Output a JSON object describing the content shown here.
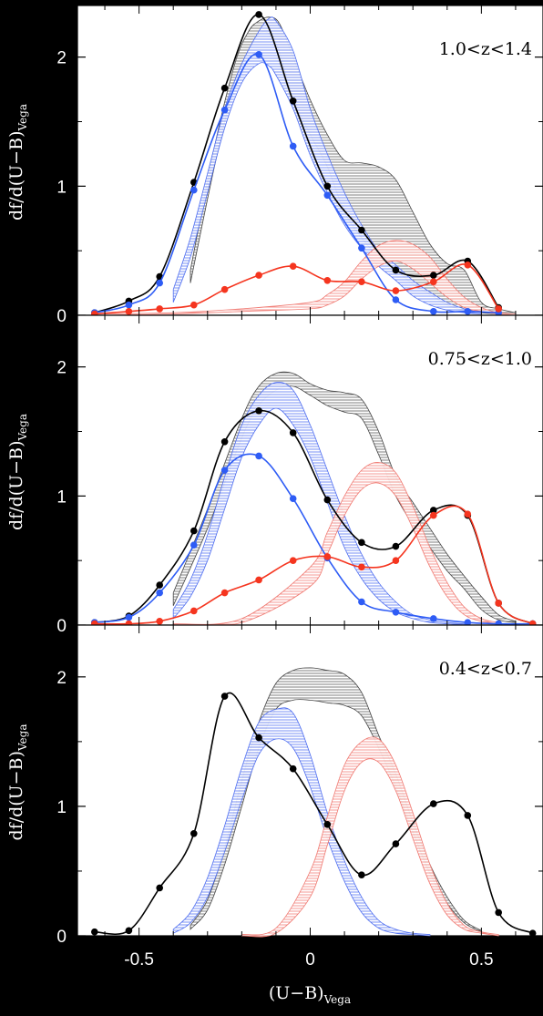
{
  "figure": {
    "xlabel_main": "(U−B)",
    "xlabel_sub": "Vega",
    "ylabel_main": "df/d(U−B)",
    "ylabel_sub": "Vega",
    "colors": {
      "background": "#000000",
      "panel": "#ffffff",
      "black_series": "#000000",
      "blue_series": "#2e5cf5",
      "red_series": "#f5351f",
      "blue_hatch": "#4f6ef0",
      "red_hatch": "#f07a72",
      "black_hatch": "#555555"
    }
  },
  "chart_data": [
    {
      "type": "line",
      "title": "1.0<z<1.4",
      "xlim": [
        -0.68,
        0.68
      ],
      "ylim": [
        0,
        2.4
      ],
      "xticks": [
        "-0.5",
        "0",
        "0.5"
      ],
      "yticks": [
        "0",
        "1",
        "2"
      ],
      "series": [
        {
          "color": "black",
          "x": [
            -0.63,
            -0.53,
            -0.44,
            -0.34,
            -0.25,
            -0.15,
            -0.05,
            0.05,
            0.15,
            0.25,
            0.36,
            0.46,
            0.55
          ],
          "values": [
            0.02,
            0.11,
            0.3,
            1.03,
            1.76,
            2.33,
            1.66,
            1.0,
            0.66,
            0.35,
            0.31,
            0.42,
            0.06
          ]
        },
        {
          "color": "blue",
          "x": [
            -0.63,
            -0.53,
            -0.44,
            -0.34,
            -0.25,
            -0.15,
            -0.05,
            0.05,
            0.15,
            0.25,
            0.36,
            0.46,
            0.55
          ],
          "values": [
            0.02,
            0.08,
            0.25,
            0.97,
            1.59,
            2.02,
            1.31,
            0.93,
            0.52,
            0.12,
            0.03,
            0.03,
            0.02
          ]
        },
        {
          "color": "red",
          "x": [
            -0.63,
            -0.53,
            -0.44,
            -0.34,
            -0.25,
            -0.15,
            -0.05,
            0.05,
            0.15,
            0.25,
            0.36,
            0.46,
            0.55
          ],
          "values": [
            0.01,
            0.03,
            0.05,
            0.08,
            0.2,
            0.31,
            0.38,
            0.27,
            0.26,
            0.19,
            0.26,
            0.39,
            0.05
          ]
        }
      ],
      "bands": [
        {
          "color": "black",
          "x": [
            -0.35,
            -0.28,
            -0.22,
            -0.18,
            -0.15,
            -0.12,
            -0.09,
            -0.05,
            0,
            0.05,
            0.1,
            0.15,
            0.2,
            0.25,
            0.3,
            0.35,
            0.4,
            0.45,
            0.5,
            0.55,
            0.6
          ],
          "lower": [
            0.25,
            1.15,
            1.8,
            2.05,
            2.18,
            2.18,
            2.04,
            1.68,
            1.4,
            1.15,
            0.8,
            0.6,
            0.45,
            0.35,
            0.24,
            0.16,
            0.08,
            0.04,
            0.02,
            0.01,
            0.0
          ],
          "upper": [
            0.35,
            1.3,
            1.95,
            2.2,
            2.28,
            2.31,
            2.26,
            2.0,
            1.67,
            1.4,
            1.2,
            1.18,
            1.15,
            1.05,
            0.8,
            0.55,
            0.4,
            0.35,
            0.1,
            0.05,
            0.02
          ]
        },
        {
          "color": "blue",
          "x": [
            -0.4,
            -0.35,
            -0.3,
            -0.25,
            -0.2,
            -0.15,
            -0.12,
            -0.1,
            -0.05,
            0,
            0.05,
            0.1,
            0.15,
            0.2,
            0.25,
            0.3,
            0.35,
            0.4,
            0.45,
            0.5
          ],
          "lower": [
            0.1,
            0.45,
            0.95,
            1.45,
            1.8,
            1.95,
            1.93,
            1.86,
            1.6,
            1.24,
            0.95,
            0.7,
            0.52,
            0.38,
            0.27,
            0.15,
            0.08,
            0.04,
            0.02,
            0.01
          ],
          "upper": [
            0.2,
            0.6,
            1.1,
            1.6,
            1.95,
            2.2,
            2.3,
            2.28,
            2.05,
            1.6,
            1.25,
            0.95,
            0.7,
            0.5,
            0.39,
            0.27,
            0.18,
            0.1,
            0.05,
            0.02
          ]
        },
        {
          "color": "red",
          "x": [
            -0.6,
            -0.4,
            -0.2,
            0,
            0.05,
            0.1,
            0.15,
            0.2,
            0.25,
            0.3,
            0.35,
            0.4,
            0.45,
            0.5,
            0.55,
            0.6
          ],
          "lower": [
            0.0,
            0.01,
            0.03,
            0.05,
            0.08,
            0.15,
            0.28,
            0.38,
            0.42,
            0.36,
            0.25,
            0.14,
            0.06,
            0.03,
            0.01,
            0.0
          ],
          "upper": [
            0.01,
            0.02,
            0.05,
            0.1,
            0.16,
            0.26,
            0.42,
            0.54,
            0.58,
            0.55,
            0.45,
            0.28,
            0.14,
            0.06,
            0.02,
            0.01
          ]
        }
      ]
    },
    {
      "type": "line",
      "title": "0.75<z<1.0",
      "xlim": [
        -0.68,
        0.68
      ],
      "ylim": [
        0,
        2.4
      ],
      "xticks": [
        "-0.5",
        "0",
        "0.5"
      ],
      "yticks": [
        "0",
        "1",
        "2"
      ],
      "series": [
        {
          "color": "black",
          "x": [
            -0.63,
            -0.53,
            -0.44,
            -0.34,
            -0.25,
            -0.15,
            -0.05,
            0.05,
            0.15,
            0.25,
            0.36,
            0.46,
            0.55,
            0.65
          ],
          "values": [
            0.02,
            0.07,
            0.31,
            0.73,
            1.42,
            1.66,
            1.49,
            0.97,
            0.64,
            0.61,
            0.89,
            0.85,
            0.17,
            0.01
          ]
        },
        {
          "color": "blue",
          "x": [
            -0.63,
            -0.53,
            -0.44,
            -0.34,
            -0.25,
            -0.15,
            -0.05,
            0.05,
            0.15,
            0.25,
            0.36,
            0.46,
            0.55,
            0.65
          ],
          "values": [
            0.02,
            0.06,
            0.25,
            0.62,
            1.2,
            1.31,
            0.98,
            0.52,
            0.18,
            0.1,
            0.05,
            0.02,
            0.01,
            0.01
          ]
        },
        {
          "color": "red",
          "x": [
            -0.63,
            -0.53,
            -0.44,
            -0.34,
            -0.25,
            -0.15,
            -0.05,
            0.05,
            0.15,
            0.25,
            0.36,
            0.46,
            0.55,
            0.65
          ],
          "values": [
            0.01,
            0.01,
            0.03,
            0.11,
            0.25,
            0.35,
            0.5,
            0.53,
            0.45,
            0.5,
            0.85,
            0.86,
            0.17,
            0.01
          ]
        }
      ],
      "bands": [
        {
          "color": "black",
          "x": [
            -0.4,
            -0.3,
            -0.2,
            -0.15,
            -0.1,
            -0.05,
            0,
            0.05,
            0.1,
            0.15,
            0.2,
            0.25,
            0.3,
            0.35,
            0.4,
            0.45,
            0.5,
            0.55,
            0.6
          ],
          "lower": [
            0.15,
            0.75,
            1.45,
            1.7,
            1.82,
            1.85,
            1.78,
            1.7,
            1.65,
            1.6,
            1.32,
            1.0,
            0.78,
            0.6,
            0.42,
            0.28,
            0.12,
            0.04,
            0.02
          ],
          "upper": [
            0.25,
            0.9,
            1.6,
            1.85,
            1.95,
            1.95,
            1.87,
            1.82,
            1.8,
            1.75,
            1.5,
            1.15,
            0.95,
            0.75,
            0.55,
            0.38,
            0.22,
            0.08,
            0.03
          ]
        },
        {
          "color": "blue",
          "x": [
            -0.4,
            -0.35,
            -0.3,
            -0.25,
            -0.2,
            -0.15,
            -0.1,
            -0.05,
            0,
            0.05,
            0.1,
            0.15,
            0.2,
            0.25,
            0.3,
            0.35,
            0.4,
            0.45
          ],
          "lower": [
            0.05,
            0.22,
            0.5,
            0.9,
            1.3,
            1.55,
            1.68,
            1.55,
            1.3,
            0.95,
            0.6,
            0.36,
            0.2,
            0.1,
            0.05,
            0.02,
            0.01,
            0.0
          ],
          "upper": [
            0.12,
            0.35,
            0.7,
            1.15,
            1.55,
            1.78,
            1.88,
            1.82,
            1.55,
            1.2,
            0.85,
            0.55,
            0.33,
            0.18,
            0.08,
            0.04,
            0.02,
            0.01
          ]
        },
        {
          "color": "red",
          "x": [
            -0.4,
            -0.2,
            0,
            0.05,
            0.1,
            0.15,
            0.2,
            0.25,
            0.3,
            0.35,
            0.4,
            0.45,
            0.5,
            0.55
          ],
          "lower": [
            0.0,
            0.02,
            0.3,
            0.55,
            0.85,
            1.05,
            1.1,
            1.0,
            0.75,
            0.45,
            0.22,
            0.08,
            0.03,
            0.01
          ],
          "upper": [
            0.01,
            0.05,
            0.45,
            0.72,
            1.0,
            1.2,
            1.26,
            1.18,
            0.92,
            0.6,
            0.33,
            0.14,
            0.05,
            0.02
          ]
        }
      ]
    },
    {
      "type": "line",
      "title": "0.4<z<0.7",
      "xlim": [
        -0.68,
        0.68
      ],
      "ylim": [
        0,
        2.4
      ],
      "xticks": [
        "-0.5",
        "0",
        "0.5"
      ],
      "yticks": [
        "0",
        "1",
        "2"
      ],
      "series": [
        {
          "color": "black",
          "x": [
            -0.63,
            -0.53,
            -0.44,
            -0.34,
            -0.25,
            -0.15,
            -0.05,
            0.05,
            0.15,
            0.25,
            0.36,
            0.46,
            0.55,
            0.65
          ],
          "values": [
            0.03,
            0.04,
            0.37,
            0.79,
            1.85,
            1.53,
            1.29,
            0.86,
            0.47,
            0.71,
            1.02,
            0.93,
            0.18,
            0.02
          ]
        }
      ],
      "bands": [
        {
          "color": "black",
          "x": [
            -0.35,
            -0.3,
            -0.25,
            -0.2,
            -0.15,
            -0.1,
            -0.05,
            0,
            0.05,
            0.1,
            0.15,
            0.2,
            0.25,
            0.3,
            0.35,
            0.4,
            0.45,
            0.5
          ],
          "lower": [
            0.05,
            0.2,
            0.55,
            1.0,
            1.45,
            1.75,
            1.82,
            1.82,
            1.8,
            1.78,
            1.7,
            1.45,
            1.15,
            0.8,
            0.48,
            0.25,
            0.1,
            0.03
          ],
          "upper": [
            0.08,
            0.28,
            0.68,
            1.2,
            1.65,
            1.95,
            2.05,
            2.07,
            2.05,
            2.02,
            1.88,
            1.55,
            1.25,
            0.88,
            0.55,
            0.3,
            0.12,
            0.04
          ]
        },
        {
          "color": "blue",
          "x": [
            -0.4,
            -0.35,
            -0.3,
            -0.25,
            -0.2,
            -0.15,
            -0.1,
            -0.05,
            0,
            0.05,
            0.1,
            0.15,
            0.2,
            0.25,
            0.3,
            0.35
          ],
          "lower": [
            0.02,
            0.1,
            0.3,
            0.65,
            1.05,
            1.4,
            1.52,
            1.45,
            1.15,
            0.75,
            0.42,
            0.18,
            0.06,
            0.02,
            0.01,
            0.0
          ],
          "upper": [
            0.05,
            0.18,
            0.45,
            0.85,
            1.3,
            1.65,
            1.75,
            1.72,
            1.4,
            0.95,
            0.58,
            0.3,
            0.12,
            0.05,
            0.02,
            0.01
          ]
        },
        {
          "color": "red",
          "x": [
            -0.2,
            -0.1,
            0,
            0.05,
            0.1,
            0.15,
            0.2,
            0.25,
            0.3,
            0.35,
            0.4,
            0.45,
            0.5,
            0.55
          ],
          "lower": [
            0.0,
            0.02,
            0.3,
            0.7,
            1.12,
            1.34,
            1.34,
            1.12,
            0.75,
            0.4,
            0.16,
            0.05,
            0.02,
            0.0
          ],
          "upper": [
            0.01,
            0.06,
            0.5,
            0.92,
            1.32,
            1.5,
            1.52,
            1.32,
            0.95,
            0.55,
            0.25,
            0.08,
            0.03,
            0.01
          ]
        }
      ]
    }
  ]
}
